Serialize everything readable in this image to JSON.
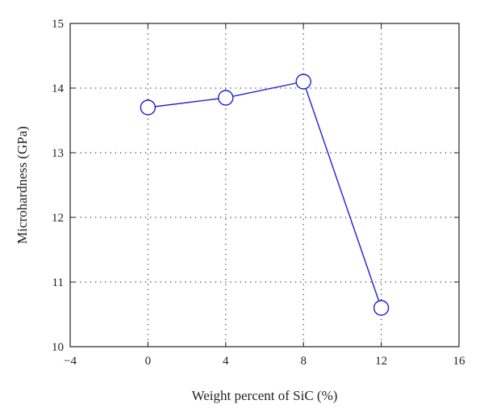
{
  "chart_data": {
    "type": "line",
    "title": "",
    "xlabel": "Weight percent of SiC (%)",
    "ylabel": "Microhardness (GPa)",
    "xlim": [
      -4,
      16
    ],
    "ylim": [
      10,
      15
    ],
    "xticks": [
      -4,
      0,
      4,
      8,
      12,
      16
    ],
    "xtick_labels": [
      "−4",
      "0",
      "4",
      "8",
      "12",
      "16"
    ],
    "yticks": [
      10,
      11,
      12,
      13,
      14,
      15
    ],
    "ytick_labels": [
      "10",
      "11",
      "12",
      "13",
      "14",
      "15"
    ],
    "grid": true,
    "grid_style": "dotted",
    "series": [
      {
        "x": [
          0,
          4,
          8,
          12
        ],
        "y": [
          13.7,
          13.85,
          14.1,
          10.6
        ],
        "color": "#1f1fd6",
        "marker": "open-circle"
      }
    ]
  }
}
